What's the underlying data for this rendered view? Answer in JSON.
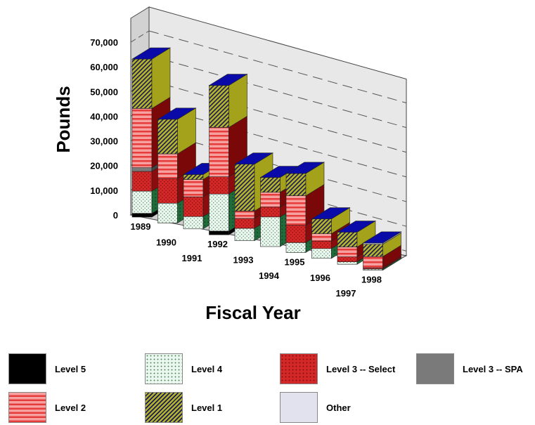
{
  "chart_data": {
    "type": "bar",
    "stacked": true,
    "three_d": true,
    "title": "",
    "xlabel": "Fiscal Year",
    "ylabel": "Pounds",
    "ylim": [
      0,
      70000
    ],
    "yticks": [
      "0",
      "10,000",
      "20,000",
      "30,000",
      "40,000",
      "50,000",
      "60,000",
      "70,000"
    ],
    "grid": true,
    "legend_position": "bottom",
    "categories": [
      "1989",
      "1990",
      "1991",
      "1992",
      "1993",
      "1994",
      "1995",
      "1996",
      "1997",
      "1998"
    ],
    "series": [
      {
        "name": "Level 5",
        "color": "#000000",
        "values": [
          1500,
          0,
          0,
          1500,
          0,
          0,
          0,
          0,
          0,
          0
        ]
      },
      {
        "name": "Level 4",
        "color": "#dff0e4",
        "values": [
          9000,
          8000,
          5000,
          15000,
          5000,
          12000,
          4000,
          4000,
          1000,
          500
        ]
      },
      {
        "name": "Level 3 -- Select",
        "color": "#d42828",
        "values": [
          8000,
          10000,
          8000,
          7000,
          4000,
          4000,
          7000,
          3000,
          2000,
          500
        ]
      },
      {
        "name": "Level 3 -- SPA",
        "color": "#7a7a7a",
        "values": [
          1500,
          0,
          0,
          0,
          0,
          0,
          0,
          0,
          0,
          0
        ]
      },
      {
        "name": "Level 2",
        "color": "#f26e6e",
        "values": [
          24000,
          10000,
          7000,
          20000,
          3000,
          6000,
          12000,
          3000,
          4000,
          4500
        ]
      },
      {
        "name": "Level 1",
        "color": "#a8a820",
        "values": [
          20000,
          14000,
          2000,
          17000,
          19000,
          6000,
          9000,
          6000,
          6000,
          5000
        ]
      },
      {
        "name": "Other",
        "color": "#e2e2ee",
        "values": [
          0,
          0,
          0,
          0,
          0,
          0,
          0,
          0,
          0,
          500
        ]
      }
    ]
  },
  "legend": {
    "items": [
      {
        "label": "Level 5"
      },
      {
        "label": "Level 4"
      },
      {
        "label": "Level 3 -- Select"
      },
      {
        "label": "Level 3 -- SPA"
      },
      {
        "label": "Level 2"
      },
      {
        "label": "Level 1"
      },
      {
        "label": "Other"
      }
    ]
  }
}
